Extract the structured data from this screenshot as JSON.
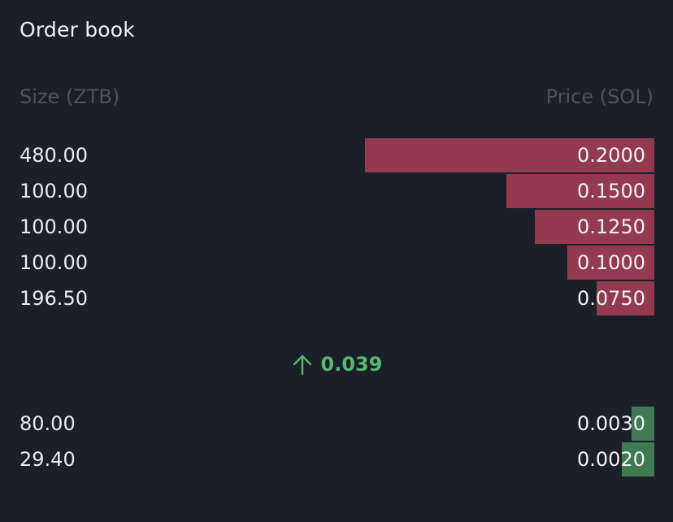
{
  "title": "Order book",
  "headers": {
    "size": "Size (ZTB)",
    "price": "Price (SOL)"
  },
  "colors": {
    "ask": "#943a50",
    "bid": "#3f7a53",
    "last_price": "#57b872"
  },
  "asks": [
    {
      "size": "480.00",
      "price": "0.2000",
      "depth_fraction": 0.43
    },
    {
      "size": "100.00",
      "price": "0.1500",
      "depth_fraction": 0.22
    },
    {
      "size": "100.00",
      "price": "0.1250",
      "depth_fraction": 0.178
    },
    {
      "size": "100.00",
      "price": "0.1000",
      "depth_fraction": 0.129
    },
    {
      "size": "196.50",
      "price": "0.0750",
      "depth_fraction": 0.086
    }
  ],
  "last_price": {
    "icon": "arrow-up-icon",
    "value": "0.039"
  },
  "bids": [
    {
      "size": "80.00",
      "price": "0.0030",
      "depth_fraction": 0.034
    },
    {
      "size": "29.40",
      "price": "0.0020",
      "depth_fraction": 0.048
    }
  ]
}
